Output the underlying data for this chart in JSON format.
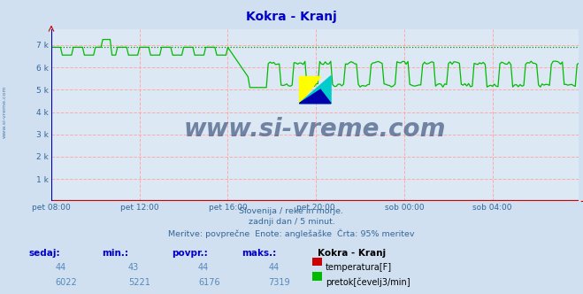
{
  "title": "Kokra - Kranj",
  "title_color": "#0000cc",
  "bg_color": "#d0e0f0",
  "plot_bg_color": "#dce8f4",
  "grid_color": "#ffaaaa",
  "x_ticks": [
    "pet 08:00",
    "pet 12:00",
    "pet 16:00",
    "pet 20:00",
    "sob 00:00",
    "sob 04:00"
  ],
  "x_tick_positions": [
    0,
    48,
    96,
    144,
    192,
    240
  ],
  "y_ticks": [
    0,
    1000,
    2000,
    3000,
    4000,
    5000,
    6000,
    7000
  ],
  "y_tick_labels": [
    "",
    "1 k",
    "2 k",
    "3 k",
    "4 k",
    "5 k",
    "6 k",
    "7 k"
  ],
  "ylim": [
    0,
    7700
  ],
  "xlim_max": 287,
  "temp_color": "#cc0000",
  "flow_color": "#00bb00",
  "dashed_line_color": "#009900",
  "dashed_line_y": 6900,
  "temp_value": 44,
  "temp_min": 43,
  "temp_avg": 44,
  "temp_max": 44,
  "flow_value": 6022,
  "flow_min": 5221,
  "flow_avg": 6176,
  "flow_max": 7319,
  "subtitle1": "Slovenija / reke in morje.",
  "subtitle2": "zadnji dan / 5 minut.",
  "subtitle3": "Meritve: povprečne  Enote: anglešaške  Črta: 95% meritev",
  "watermark": "www.si-vreme.com",
  "watermark_color": "#1a3060",
  "sidebar_text": "www.si-vreme.com"
}
